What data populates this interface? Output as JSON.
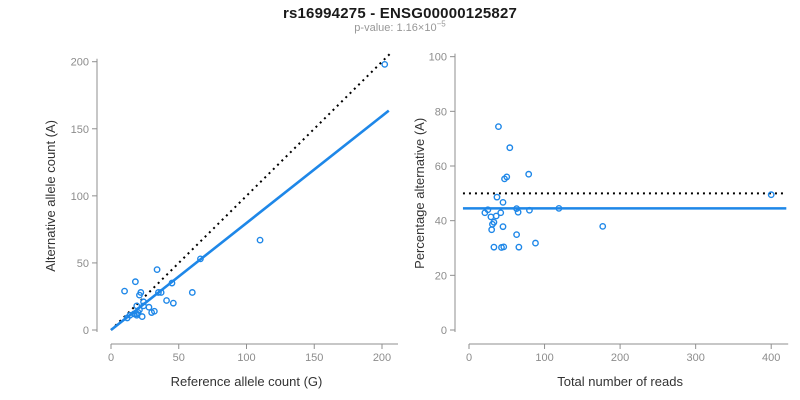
{
  "header": {
    "title": "rs16994275 - ENSG00000125827",
    "pvalue_base": "p-value: 1.16×10",
    "pvalue_exponent": "−5"
  },
  "style": {
    "point_blue": "#1E87E8",
    "line_blue": "#1E87E8",
    "dotted_black": "#000000",
    "axis_gray": "#8f8f8f",
    "tick_label_gray": "#8c8c8c",
    "axis_title_dark": "#333333"
  },
  "chart_data": [
    {
      "type": "scatter",
      "name": "allele-count-scatter",
      "xlabel": "Reference allele count (G)",
      "ylabel": "Alternative allele count (A)",
      "xlim": [
        0,
        207
      ],
      "ylim": [
        0,
        205
      ],
      "xticks": [
        0,
        50,
        100,
        150,
        200
      ],
      "yticks": [
        0,
        50,
        100,
        150,
        200
      ],
      "grid": false,
      "legend": "none",
      "points": [
        [
          10,
          29
        ],
        [
          18,
          36
        ],
        [
          22,
          28
        ],
        [
          21,
          26
        ],
        [
          34,
          45
        ],
        [
          19,
          18
        ],
        [
          24,
          21
        ],
        [
          202,
          198
        ],
        [
          14,
          11
        ],
        [
          12,
          9
        ],
        [
          17,
          12
        ],
        [
          21,
          15
        ],
        [
          24,
          18
        ],
        [
          35,
          28
        ],
        [
          37,
          28
        ],
        [
          45,
          35
        ],
        [
          66,
          53
        ],
        [
          19,
          12
        ],
        [
          20,
          13
        ],
        [
          28,
          17
        ],
        [
          19,
          11
        ],
        [
          41,
          22
        ],
        [
          110,
          67
        ],
        [
          60,
          28
        ],
        [
          23,
          10
        ],
        [
          30,
          13
        ],
        [
          32,
          14
        ],
        [
          46,
          20
        ]
      ],
      "lines": [
        {
          "name": "identity-line",
          "style": "dotted",
          "color": "#000000",
          "x1": 0,
          "y1": 0,
          "x2": 206,
          "y2": 206
        },
        {
          "name": "fit-line",
          "style": "solid",
          "color": "#1E87E8",
          "x1": 0,
          "y1": 0,
          "x2": 205,
          "y2": 163.5
        }
      ]
    },
    {
      "type": "scatter",
      "name": "percentage-vs-reads-scatter",
      "xlabel": "Total number of reads",
      "ylabel": "Percentage alternative (A)",
      "xlim": [
        0,
        420
      ],
      "ylim": [
        0,
        100
      ],
      "xticks": [
        0,
        100,
        200,
        300,
        400
      ],
      "yticks": [
        0,
        20,
        40,
        60,
        80,
        100
      ],
      "grid": false,
      "legend": "none",
      "points": [
        [
          39,
          74.4
        ],
        [
          54,
          66.7
        ],
        [
          50,
          56.0
        ],
        [
          47,
          55.3
        ],
        [
          79,
          57.0
        ],
        [
          37,
          48.6
        ],
        [
          45,
          46.7
        ],
        [
          400,
          49.5
        ],
        [
          25,
          44.0
        ],
        [
          21,
          42.9
        ],
        [
          29,
          41.4
        ],
        [
          36,
          41.7
        ],
        [
          42,
          42.9
        ],
        [
          63,
          44.4
        ],
        [
          65,
          43.1
        ],
        [
          80,
          43.8
        ],
        [
          119,
          44.5
        ],
        [
          31,
          38.7
        ],
        [
          33,
          39.4
        ],
        [
          45,
          37.8
        ],
        [
          30,
          36.7
        ],
        [
          63,
          34.9
        ],
        [
          177,
          37.9
        ],
        [
          88,
          31.8
        ],
        [
          33,
          30.3
        ],
        [
          43,
          30.2
        ],
        [
          46,
          30.4
        ],
        [
          66,
          30.3
        ]
      ],
      "lines": [
        {
          "name": "expected-50pct-line",
          "style": "dotted",
          "color": "#000000",
          "x1": -8,
          "y1": 50,
          "x2": 420,
          "y2": 50
        },
        {
          "name": "mean-percentage-line",
          "style": "solid",
          "color": "#1E87E8",
          "x1": -8,
          "y1": 44.5,
          "x2": 420,
          "y2": 44.5
        }
      ]
    }
  ]
}
